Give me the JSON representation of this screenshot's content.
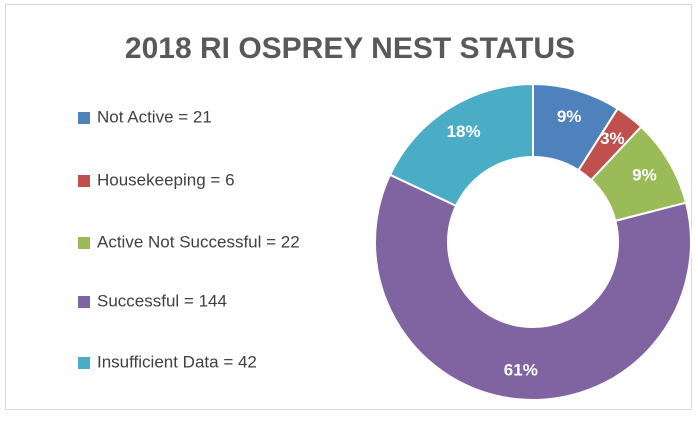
{
  "chart_data": {
    "type": "donut",
    "title": "2018 RI OSPREY NEST STATUS",
    "categories": [
      "Not Active = 21",
      "Housekeeping = 6",
      "Active Not Successful = 22",
      "Successful = 144",
      "Insufficient Data = 42"
    ],
    "values": [
      9,
      3,
      9,
      61,
      18
    ],
    "value_labels": [
      "9%",
      "3%",
      "9%",
      "61%",
      "18%"
    ],
    "colors": [
      "#4f81bd",
      "#c0504d",
      "#9bbb59",
      "#8064a2",
      "#4bacc6"
    ],
    "legend": "left"
  }
}
